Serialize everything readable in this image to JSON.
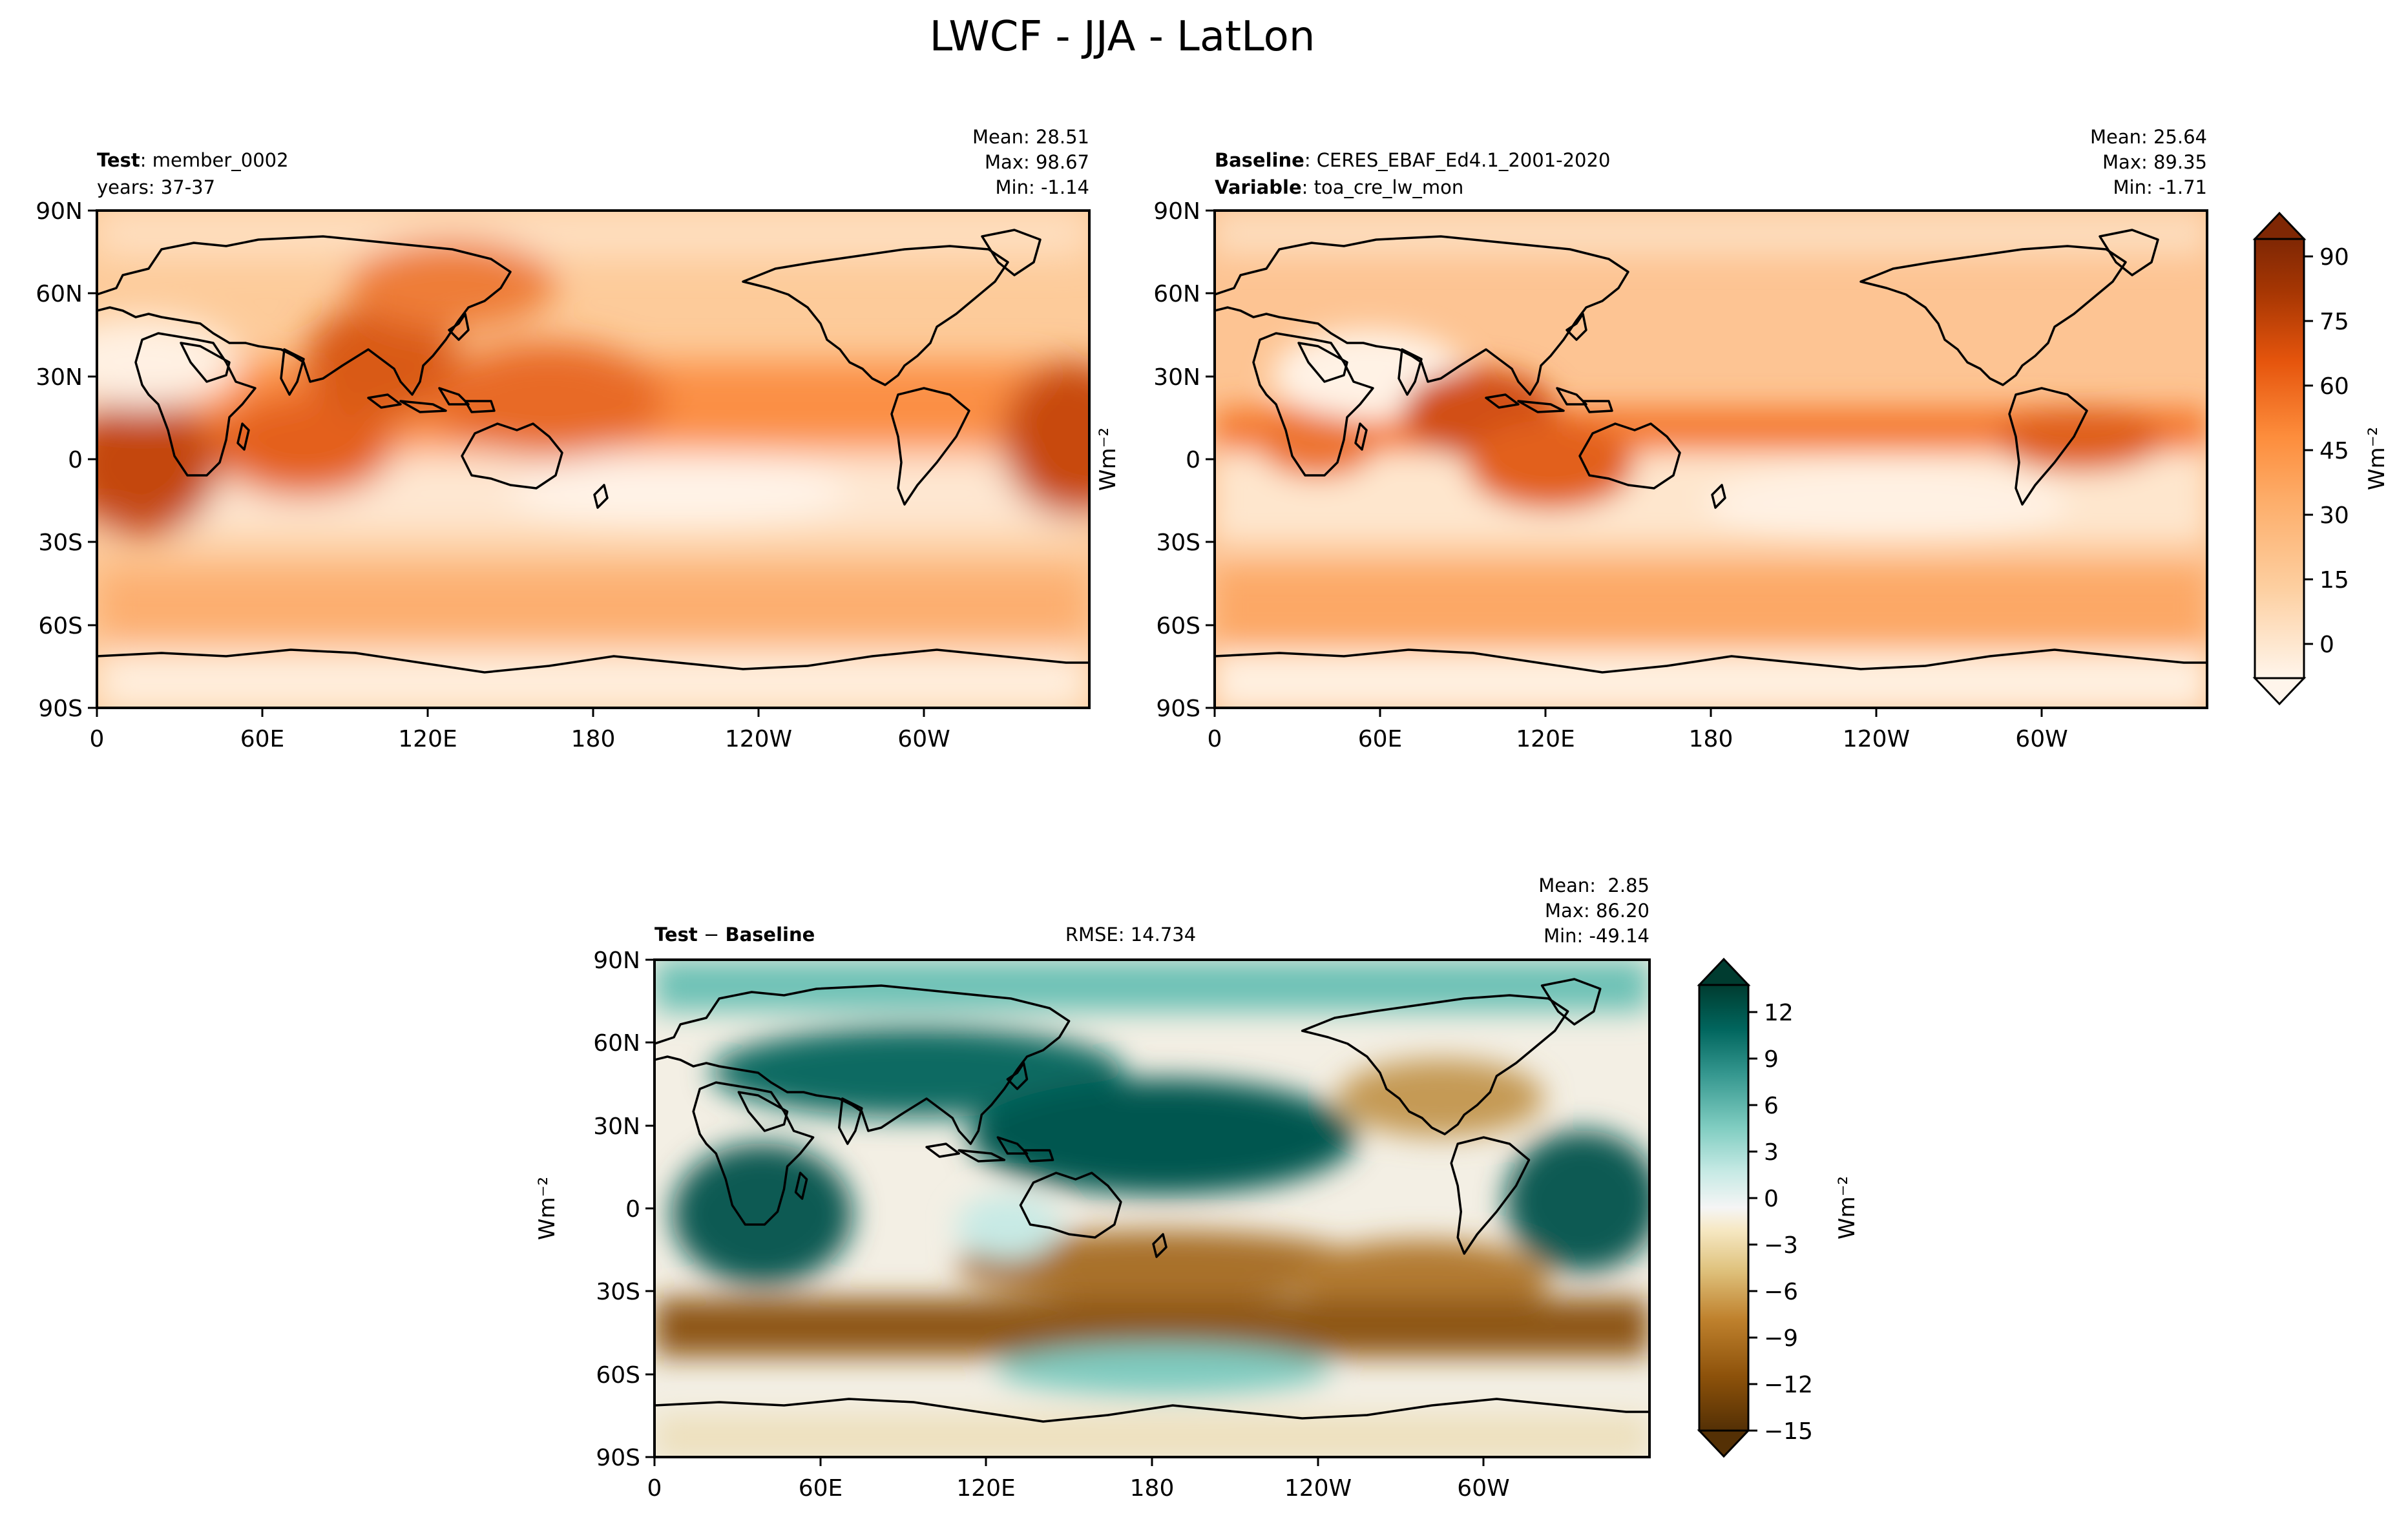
{
  "figure": {
    "title": "LWCF - JJA - LatLon"
  },
  "colors": {
    "sequential": [
      "#fff5eb",
      "#fdd0a2",
      "#fdae6b",
      "#fd8d3c",
      "#e6550d",
      "#a63603",
      "#7f2704"
    ],
    "diverging": [
      "#543005",
      "#8c510a",
      "#bf812d",
      "#dfc27d",
      "#f6e8c3",
      "#f5f5f5",
      "#c7eae5",
      "#80cdc1",
      "#35978f",
      "#01665e",
      "#003c30"
    ],
    "coast": "#000000"
  },
  "chart_data": [
    {
      "type": "heatmap",
      "panel": "test",
      "title_left_bold": "Test",
      "title_left_rest": ": member_0002",
      "subtitle": "years: 37-37",
      "stats": {
        "mean": "Mean: 28.51",
        "max": "Max: 98.67",
        "min": "Min: -1.14"
      },
      "yticks": [
        "90N",
        "60N",
        "30N",
        "0",
        "30S",
        "60S",
        "90S"
      ],
      "xticks": [
        "0",
        "60E",
        "120E",
        "180",
        "120W",
        "60W"
      ],
      "colormap": "Oranges",
      "range": [
        -10,
        100
      ],
      "approx_field": "Longwave cloud forcing, model test run; peaks near 98.67 Wm-2 over the Asian monsoon region and equatorial Africa"
    },
    {
      "type": "heatmap",
      "panel": "baseline",
      "title_left_bold": "Baseline",
      "title_left_rest": ": CERES_EBAF_Ed4.1_2001-2020",
      "subtitle_bold": "Variable",
      "subtitle_rest": ": toa_cre_lw_mon",
      "stats": {
        "mean": "Mean: 25.64",
        "max": "Max: 89.35",
        "min": "Min: -1.71"
      },
      "yticks": [
        "90N",
        "60N",
        "30N",
        "0",
        "30S",
        "60S",
        "90S"
      ],
      "xticks": [
        "0",
        "60E",
        "120E",
        "180",
        "120W",
        "60W"
      ],
      "ylabel": "Wm⁻²",
      "colorbar": {
        "ticks": [
          "90",
          "75",
          "60",
          "45",
          "30",
          "15",
          "0"
        ],
        "label": "Wm⁻²"
      },
      "colormap": "Oranges",
      "range": [
        -10,
        100
      ]
    },
    {
      "type": "heatmap",
      "panel": "difference",
      "title_left_a": "Test",
      "title_left_b": " − ",
      "title_left_c": "Baseline",
      "rmse": "RMSE: 14.734",
      "stats": {
        "mean": "Mean:  2.85",
        "max": "Max: 86.20",
        "min": "Min: -49.14"
      },
      "yticks": [
        "90N",
        "60N",
        "30N",
        "0",
        "30S",
        "60S",
        "90S"
      ],
      "xticks": [
        "0",
        "60E",
        "120E",
        "180",
        "120W",
        "60W"
      ],
      "ylabel": "Wm⁻²",
      "colorbar": {
        "ticks": [
          "12",
          "9",
          "6",
          "3",
          "0",
          "−3",
          "−6",
          "−9",
          "−12",
          "−15"
        ],
        "label": "Wm⁻²"
      },
      "colormap": "BrBG",
      "range": [
        -15,
        15
      ]
    }
  ]
}
